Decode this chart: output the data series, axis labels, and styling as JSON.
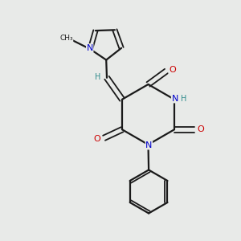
{
  "background_color": "#e8eae8",
  "bond_color": "#1a1a1a",
  "N_color": "#0000cc",
  "O_color": "#cc0000",
  "H_color": "#2e8b8b",
  "fig_size": [
    3.0,
    3.0
  ],
  "dpi": 100,
  "xlim": [
    0,
    10
  ],
  "ylim": [
    0,
    10
  ]
}
